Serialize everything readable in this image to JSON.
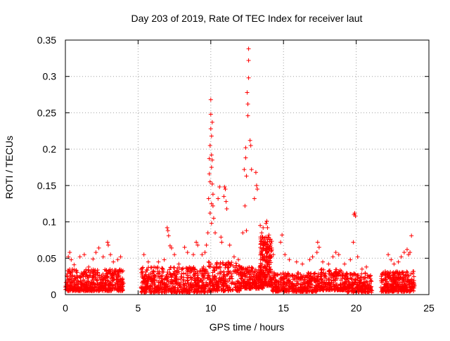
{
  "chart_data": {
    "type": "scatter",
    "title": "Day 203 of 2019, Rate Of TEC Index for receiver laut",
    "xlabel": "GPS time / hours",
    "ylabel": "ROTI / TECUs",
    "xlim": [
      0,
      25
    ],
    "ylim": [
      0,
      0.35
    ],
    "x_ticks": [
      "0",
      "5",
      "10",
      "15",
      "20",
      "25"
    ],
    "y_ticks": [
      "0",
      "0.05",
      "0.1",
      "0.15",
      "0.2",
      "0.25",
      "0.3",
      "0.35"
    ],
    "grid": true,
    "grid_style": "dotted",
    "legend": false,
    "marker": "plus",
    "color": "#ff0000",
    "data_gaps_hours": [
      [
        4.1,
        5.1
      ],
      [
        21.1,
        21.7
      ]
    ],
    "points": [
      [
        0.1,
        0.026
      ],
      [
        0.2,
        0.052
      ],
      [
        0.3,
        0.058
      ],
      [
        0.4,
        0.048
      ],
      [
        0.6,
        0.041
      ],
      [
        1.0,
        0.052
      ],
      [
        1.3,
        0.055
      ],
      [
        1.6,
        0.038
      ],
      [
        1.9,
        0.049
      ],
      [
        2.1,
        0.058
      ],
      [
        2.3,
        0.064
      ],
      [
        2.6,
        0.052
      ],
      [
        2.9,
        0.072
      ],
      [
        2.95,
        0.068
      ],
      [
        3.1,
        0.055
      ],
      [
        3.3,
        0.045
      ],
      [
        3.6,
        0.048
      ],
      [
        3.8,
        0.052
      ],
      [
        5.4,
        0.055
      ],
      [
        5.7,
        0.045
      ],
      [
        6.1,
        0.038
      ],
      [
        6.4,
        0.045
      ],
      [
        6.8,
        0.048
      ],
      [
        7.0,
        0.092
      ],
      [
        7.05,
        0.088
      ],
      [
        7.1,
        0.081
      ],
      [
        7.2,
        0.067
      ],
      [
        7.3,
        0.064
      ],
      [
        7.5,
        0.055
      ],
      [
        7.8,
        0.042
      ],
      [
        8.2,
        0.065
      ],
      [
        8.4,
        0.058
      ],
      [
        8.8,
        0.055
      ],
      [
        9.0,
        0.072
      ],
      [
        9.1,
        0.068
      ],
      [
        9.4,
        0.055
      ],
      [
        9.6,
        0.058
      ],
      [
        9.7,
        0.068
      ],
      [
        9.8,
        0.085
      ],
      [
        9.85,
        0.132
      ],
      [
        9.9,
        0.187
      ],
      [
        9.9,
        0.166
      ],
      [
        9.95,
        0.205
      ],
      [
        9.95,
        0.155
      ],
      [
        9.95,
        0.112
      ],
      [
        10.0,
        0.268
      ],
      [
        10.0,
        0.248
      ],
      [
        10.0,
        0.228
      ],
      [
        10.05,
        0.218
      ],
      [
        10.05,
        0.192
      ],
      [
        10.05,
        0.175
      ],
      [
        10.05,
        0.125
      ],
      [
        10.05,
        0.098
      ],
      [
        10.1,
        0.237
      ],
      [
        10.1,
        0.185
      ],
      [
        10.1,
        0.152
      ],
      [
        10.15,
        0.138
      ],
      [
        10.15,
        0.122
      ],
      [
        10.2,
        0.105
      ],
      [
        10.3,
        0.085
      ],
      [
        10.5,
        0.132
      ],
      [
        10.6,
        0.148
      ],
      [
        10.7,
        0.079
      ],
      [
        10.75,
        0.072
      ],
      [
        10.9,
        0.135
      ],
      [
        10.95,
        0.148
      ],
      [
        11.0,
        0.145
      ],
      [
        11.05,
        0.128
      ],
      [
        11.1,
        0.118
      ],
      [
        11.3,
        0.068
      ],
      [
        11.6,
        0.052
      ],
      [
        11.9,
        0.048
      ],
      [
        12.2,
        0.085
      ],
      [
        12.3,
        0.172
      ],
      [
        12.35,
        0.122
      ],
      [
        12.4,
        0.202
      ],
      [
        12.4,
        0.188
      ],
      [
        12.45,
        0.163
      ],
      [
        12.45,
        0.088
      ],
      [
        12.5,
        0.278
      ],
      [
        12.55,
        0.262
      ],
      [
        12.55,
        0.246
      ],
      [
        12.6,
        0.338
      ],
      [
        12.6,
        0.322
      ],
      [
        12.6,
        0.298
      ],
      [
        12.7,
        0.212
      ],
      [
        12.75,
        0.205
      ],
      [
        12.8,
        0.172
      ],
      [
        13.0,
        0.132
      ],
      [
        13.1,
        0.168
      ],
      [
        13.15,
        0.15
      ],
      [
        13.2,
        0.145
      ],
      [
        13.4,
        0.095
      ],
      [
        13.5,
        0.085
      ],
      [
        13.6,
        0.092
      ],
      [
        13.7,
        0.078
      ],
      [
        13.8,
        0.098
      ],
      [
        13.85,
        0.101
      ],
      [
        13.9,
        0.092
      ],
      [
        14.0,
        0.082
      ],
      [
        14.05,
        0.073
      ],
      [
        14.1,
        0.068
      ],
      [
        14.3,
        0.055
      ],
      [
        14.8,
        0.072
      ],
      [
        14.9,
        0.082
      ],
      [
        15.1,
        0.055
      ],
      [
        15.4,
        0.048
      ],
      [
        15.9,
        0.045
      ],
      [
        16.3,
        0.042
      ],
      [
        16.8,
        0.048
      ],
      [
        17.0,
        0.052
      ],
      [
        17.3,
        0.058
      ],
      [
        17.35,
        0.072
      ],
      [
        17.45,
        0.065
      ],
      [
        17.7,
        0.045
      ],
      [
        18.1,
        0.042
      ],
      [
        18.4,
        0.052
      ],
      [
        18.6,
        0.058
      ],
      [
        18.8,
        0.055
      ],
      [
        19.2,
        0.042
      ],
      [
        19.6,
        0.048
      ],
      [
        19.8,
        0.072
      ],
      [
        19.85,
        0.11
      ],
      [
        19.9,
        0.112
      ],
      [
        19.95,
        0.108
      ],
      [
        20.1,
        0.052
      ],
      [
        20.4,
        0.035
      ],
      [
        20.7,
        0.038
      ],
      [
        21.8,
        0.028
      ],
      [
        22.0,
        0.032
      ],
      [
        22.2,
        0.055
      ],
      [
        22.4,
        0.048
      ],
      [
        22.6,
        0.042
      ],
      [
        22.9,
        0.045
      ],
      [
        23.1,
        0.052
      ],
      [
        23.3,
        0.058
      ],
      [
        23.5,
        0.062
      ],
      [
        23.6,
        0.055
      ],
      [
        23.7,
        0.058
      ],
      [
        23.8,
        0.081
      ]
    ],
    "dense_bands": [
      [
        0.0,
        4.0,
        0.005,
        0.035,
        520
      ],
      [
        5.2,
        9.8,
        0.003,
        0.038,
        560
      ],
      [
        9.8,
        12.0,
        0.005,
        0.045,
        260
      ],
      [
        12.0,
        13.6,
        0.008,
        0.038,
        220
      ],
      [
        13.4,
        14.2,
        0.012,
        0.08,
        220
      ],
      [
        14.2,
        17.3,
        0.004,
        0.03,
        380
      ],
      [
        17.3,
        19.3,
        0.006,
        0.035,
        240
      ],
      [
        19.3,
        21.1,
        0.003,
        0.03,
        200
      ],
      [
        21.7,
        24.0,
        0.004,
        0.032,
        320
      ]
    ]
  }
}
